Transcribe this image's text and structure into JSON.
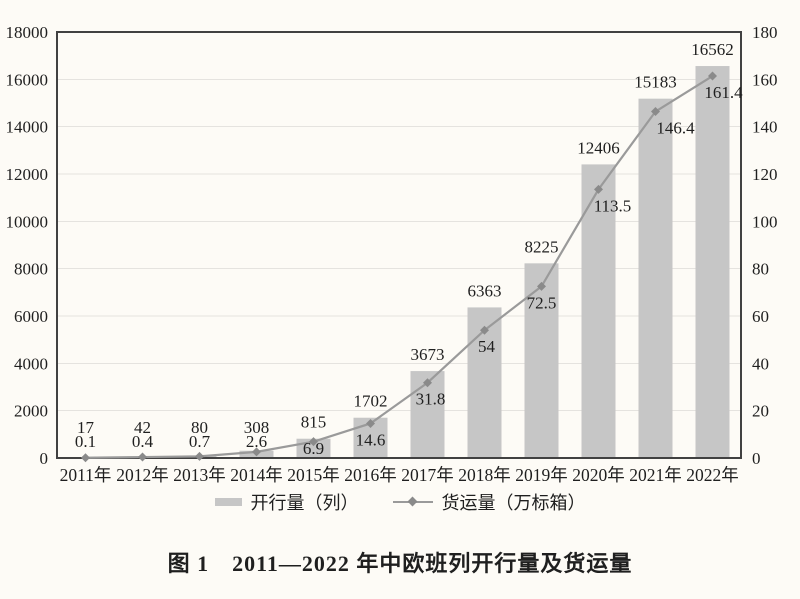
{
  "page": {
    "background": "#fdfbf6",
    "text_color": "#1f1f1f"
  },
  "figure": {
    "caption": "图 1　2011—2022 年中欧班列开行量及货运量"
  },
  "chart_data": {
    "type": "bar+line",
    "title": "图 1　2011—2022 年中欧班列开行量及货运量",
    "categories": [
      "2011年",
      "2012年",
      "2013年",
      "2014年",
      "2015年",
      "2016年",
      "2017年",
      "2018年",
      "2019年",
      "2020年",
      "2021年",
      "2022年"
    ],
    "series": [
      {
        "name": "开行量（列）",
        "type": "bar",
        "axis": "left",
        "color": "#c6c6c6",
        "values": [
          17,
          42,
          80,
          308,
          815,
          1702,
          3673,
          6363,
          8225,
          12406,
          15183,
          16562
        ]
      },
      {
        "name": "货运量（万标箱）",
        "type": "line",
        "axis": "right",
        "color": "#9a9a9a",
        "marker": "diamond",
        "marker_color": "#8a8a8a",
        "values": [
          0.1,
          0.4,
          0.7,
          2.6,
          6.9,
          14.6,
          31.8,
          54,
          72.5,
          113.5,
          146.4,
          161.4
        ]
      }
    ],
    "left_axis": {
      "min": 0,
      "max": 18000,
      "step": 2000
    },
    "right_axis": {
      "min": 0,
      "max": 180,
      "step": 20
    },
    "grid": true,
    "grid_color": "#e5e3df",
    "border_color": "#414141",
    "data_labels": true,
    "legend_position": "bottom"
  }
}
